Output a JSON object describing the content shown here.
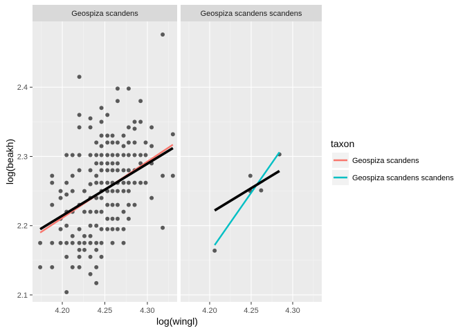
{
  "chart_data": {
    "type": "scatter",
    "xlabel": "log(wingl)",
    "ylabel": "log(beakh)",
    "xlim": [
      4.165,
      4.335
    ],
    "ylim": [
      2.09,
      2.495
    ],
    "x_ticks": [
      4.2,
      4.25,
      4.3
    ],
    "x_tick_labels": [
      "4.20",
      "4.25",
      "4.30"
    ],
    "y_ticks": [
      2.1,
      2.2,
      2.3,
      2.4
    ],
    "y_tick_labels": [
      "2.1",
      "2.2",
      "2.3",
      "2.4"
    ],
    "grid": true,
    "legend": {
      "title": "taxon",
      "placement": "right",
      "entries": [
        {
          "label": "Geospiza scandens",
          "color": "#F8766D"
        },
        {
          "label": "Geospiza scandens scandens",
          "color": "#00BFC4"
        }
      ]
    },
    "colors": {
      "point": "#000000",
      "overall_fit": "#000000",
      "panel_bg": "#EBEBEB",
      "strip_bg": "#D9D9D9",
      "grid": "#ffffff"
    },
    "panels": [
      {
        "strip": "Geospiza scandens",
        "points": [
          [
            4.174,
            2.175
          ],
          [
            4.174,
            2.14
          ],
          [
            4.188,
            2.14
          ],
          [
            4.188,
            2.175
          ],
          [
            4.188,
            2.23
          ],
          [
            4.188,
            2.262
          ],
          [
            4.188,
            2.272
          ],
          [
            4.198,
            2.175
          ],
          [
            4.198,
            2.195
          ],
          [
            4.198,
            2.21
          ],
          [
            4.198,
            2.24
          ],
          [
            4.198,
            2.25
          ],
          [
            4.205,
            2.104
          ],
          [
            4.205,
            2.155
          ],
          [
            4.205,
            2.175
          ],
          [
            4.205,
            2.2
          ],
          [
            4.205,
            2.22
          ],
          [
            4.205,
            2.245
          ],
          [
            4.205,
            2.262
          ],
          [
            4.205,
            2.302
          ],
          [
            4.212,
            2.14
          ],
          [
            4.212,
            2.175
          ],
          [
            4.212,
            2.185
          ],
          [
            4.212,
            2.22
          ],
          [
            4.212,
            2.25
          ],
          [
            4.212,
            2.272
          ],
          [
            4.212,
            2.302
          ],
          [
            4.22,
            2.14
          ],
          [
            4.22,
            2.155
          ],
          [
            4.22,
            2.165
          ],
          [
            4.22,
            2.175
          ],
          [
            4.22,
            2.195
          ],
          [
            4.22,
            2.23
          ],
          [
            4.22,
            2.28
          ],
          [
            4.22,
            2.302
          ],
          [
            4.22,
            2.342
          ],
          [
            4.22,
            2.36
          ],
          [
            4.22,
            2.415
          ],
          [
            4.226,
            2.165
          ],
          [
            4.226,
            2.175
          ],
          [
            4.226,
            2.185
          ],
          [
            4.226,
            2.22
          ],
          [
            4.226,
            2.25
          ],
          [
            4.233,
            2.13
          ],
          [
            4.233,
            2.155
          ],
          [
            4.233,
            2.175
          ],
          [
            4.233,
            2.185
          ],
          [
            4.233,
            2.2
          ],
          [
            4.233,
            2.22
          ],
          [
            4.233,
            2.24
          ],
          [
            4.233,
            2.26
          ],
          [
            4.233,
            2.28
          ],
          [
            4.233,
            2.302
          ],
          [
            4.233,
            2.342
          ],
          [
            4.233,
            2.355
          ],
          [
            4.24,
            2.117
          ],
          [
            4.24,
            2.14
          ],
          [
            4.24,
            2.165
          ],
          [
            4.24,
            2.175
          ],
          [
            4.24,
            2.2
          ],
          [
            4.24,
            2.22
          ],
          [
            4.24,
            2.24
          ],
          [
            4.24,
            2.262
          ],
          [
            4.24,
            2.272
          ],
          [
            4.24,
            2.29
          ],
          [
            4.24,
            2.302
          ],
          [
            4.24,
            2.32
          ],
          [
            4.246,
            2.155
          ],
          [
            4.246,
            2.175
          ],
          [
            4.246,
            2.195
          ],
          [
            4.246,
            2.22
          ],
          [
            4.246,
            2.24
          ],
          [
            4.246,
            2.25
          ],
          [
            4.246,
            2.262
          ],
          [
            4.246,
            2.28
          ],
          [
            4.246,
            2.29
          ],
          [
            4.246,
            2.302
          ],
          [
            4.246,
            2.315
          ],
          [
            4.246,
            2.33
          ],
          [
            4.246,
            2.35
          ],
          [
            4.246,
            2.37
          ],
          [
            4.253,
            2.195
          ],
          [
            4.253,
            2.21
          ],
          [
            4.253,
            2.23
          ],
          [
            4.253,
            2.25
          ],
          [
            4.253,
            2.262
          ],
          [
            4.253,
            2.28
          ],
          [
            4.253,
            2.29
          ],
          [
            4.253,
            2.302
          ],
          [
            4.253,
            2.32
          ],
          [
            4.253,
            2.33
          ],
          [
            4.253,
            2.36
          ],
          [
            4.259,
            2.175
          ],
          [
            4.259,
            2.195
          ],
          [
            4.259,
            2.21
          ],
          [
            4.259,
            2.23
          ],
          [
            4.259,
            2.25
          ],
          [
            4.259,
            2.262
          ],
          [
            4.259,
            2.28
          ],
          [
            4.259,
            2.29
          ],
          [
            4.259,
            2.302
          ],
          [
            4.259,
            2.32
          ],
          [
            4.259,
            2.33
          ],
          [
            4.265,
            2.195
          ],
          [
            4.265,
            2.21
          ],
          [
            4.265,
            2.23
          ],
          [
            4.265,
            2.25
          ],
          [
            4.265,
            2.262
          ],
          [
            4.265,
            2.28
          ],
          [
            4.265,
            2.29
          ],
          [
            4.265,
            2.302
          ],
          [
            4.265,
            2.32
          ],
          [
            4.265,
            2.38
          ],
          [
            4.265,
            2.398
          ],
          [
            4.272,
            2.175
          ],
          [
            4.272,
            2.195
          ],
          [
            4.272,
            2.22
          ],
          [
            4.272,
            2.25
          ],
          [
            4.272,
            2.262
          ],
          [
            4.272,
            2.28
          ],
          [
            4.272,
            2.302
          ],
          [
            4.272,
            2.315
          ],
          [
            4.272,
            2.33
          ],
          [
            4.278,
            2.21
          ],
          [
            4.278,
            2.23
          ],
          [
            4.278,
            2.25
          ],
          [
            4.278,
            2.262
          ],
          [
            4.278,
            2.28
          ],
          [
            4.278,
            2.302
          ],
          [
            4.278,
            2.32
          ],
          [
            4.278,
            2.342
          ],
          [
            4.278,
            2.398
          ],
          [
            4.285,
            2.23
          ],
          [
            4.285,
            2.262
          ],
          [
            4.285,
            2.28
          ],
          [
            4.285,
            2.302
          ],
          [
            4.285,
            2.32
          ],
          [
            4.285,
            2.34
          ],
          [
            4.285,
            2.35
          ],
          [
            4.292,
            2.262
          ],
          [
            4.292,
            2.29
          ],
          [
            4.292,
            2.302
          ],
          [
            4.292,
            2.35
          ],
          [
            4.292,
            2.38
          ],
          [
            4.298,
            2.262
          ],
          [
            4.298,
            2.302
          ],
          [
            4.298,
            2.32
          ],
          [
            4.305,
            2.24
          ],
          [
            4.305,
            2.29
          ],
          [
            4.305,
            2.315
          ],
          [
            4.305,
            2.342
          ],
          [
            4.318,
            2.197
          ],
          [
            4.318,
            2.272
          ],
          [
            4.318,
            2.476
          ],
          [
            4.33,
            2.272
          ],
          [
            4.33,
            2.332
          ]
        ],
        "fits": [
          {
            "series": "Geospiza scandens",
            "color": "#F8766D",
            "x": [
              4.174,
              4.33
            ],
            "y": [
              2.19,
              2.317
            ]
          },
          {
            "series": "overall",
            "color": "#000000",
            "x": [
              4.174,
              4.33
            ],
            "y": [
              2.195,
              2.312
            ]
          }
        ]
      },
      {
        "strip": "Geospiza scandens scandens",
        "points": [
          [
            4.206,
            2.164
          ],
          [
            4.249,
            2.25
          ],
          [
            4.249,
            2.272
          ],
          [
            4.262,
            2.251
          ],
          [
            4.284,
            2.303
          ]
        ],
        "fits": [
          {
            "series": "Geospiza scandens scandens",
            "color": "#00BFC4",
            "x": [
              4.206,
              4.284
            ],
            "y": [
              2.172,
              2.306
            ]
          },
          {
            "series": "overall",
            "color": "#000000",
            "x": [
              4.206,
              4.284
            ],
            "y": [
              2.222,
              2.279
            ]
          }
        ]
      }
    ]
  }
}
